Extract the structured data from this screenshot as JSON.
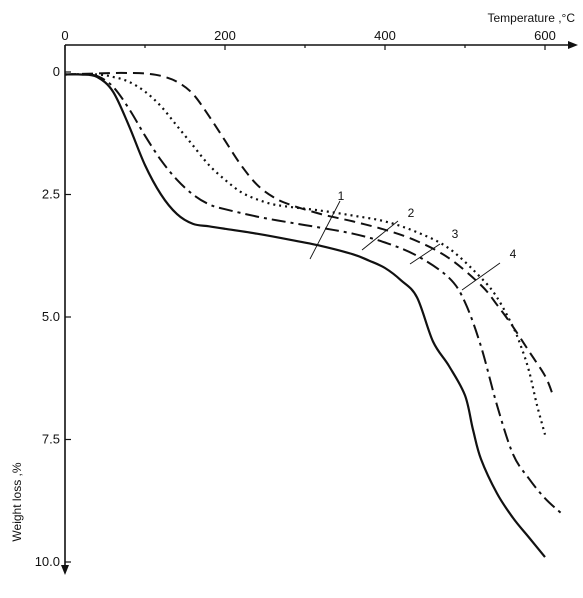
{
  "chart_data": {
    "type": "line",
    "xlabel": "Temperature ,°C",
    "ylabel": "Weight loss ,%",
    "xlim": [
      0,
      640
    ],
    "ylim": [
      0,
      10.6
    ],
    "y_inverted": true,
    "x_axis_position": "top",
    "x_ticks": [
      0,
      200,
      400,
      600
    ],
    "x_tick_labels": [
      "0",
      "200",
      "400",
      "600"
    ],
    "y_ticks": [
      0,
      2.5,
      5.0,
      7.5,
      10.0
    ],
    "y_tick_labels": [
      "0",
      "2.5",
      "5.0",
      "7.5",
      "10.0"
    ],
    "grid": false,
    "series": [
      {
        "name": "1",
        "line_style": "solid",
        "x": [
          0,
          20,
          40,
          60,
          80,
          100,
          120,
          140,
          160,
          180,
          200,
          240,
          280,
          320,
          360,
          380,
          400,
          420,
          440,
          460,
          480,
          500,
          510,
          520,
          540,
          560,
          580,
          600
        ],
        "y": [
          0.05,
          0.05,
          0.1,
          0.4,
          1.1,
          1.9,
          2.5,
          2.9,
          3.1,
          3.15,
          3.2,
          3.3,
          3.42,
          3.55,
          3.72,
          3.85,
          4.0,
          4.25,
          4.6,
          5.5,
          6.0,
          6.6,
          7.3,
          7.9,
          8.6,
          9.1,
          9.5,
          9.9
        ]
      },
      {
        "name": "2",
        "line_style": "dash-dot",
        "x": [
          0,
          20,
          40,
          60,
          80,
          100,
          120,
          140,
          160,
          180,
          200,
          240,
          280,
          320,
          360,
          400,
          440,
          480,
          500,
          520,
          540,
          560,
          580,
          600,
          620
        ],
        "y": [
          0.05,
          0.05,
          0.08,
          0.3,
          0.75,
          1.3,
          1.8,
          2.2,
          2.5,
          2.7,
          2.8,
          2.95,
          3.07,
          3.18,
          3.3,
          3.48,
          3.75,
          4.2,
          4.7,
          5.6,
          6.8,
          7.8,
          8.3,
          8.7,
          9.0
        ]
      },
      {
        "name": "3",
        "line_style": "dotted",
        "x": [
          0,
          40,
          60,
          80,
          100,
          120,
          140,
          160,
          180,
          200,
          220,
          240,
          260,
          280,
          320,
          360,
          400,
          440,
          480,
          520,
          540,
          560,
          570,
          580,
          590,
          600
        ],
        "y": [
          0.05,
          0.05,
          0.1,
          0.2,
          0.4,
          0.7,
          1.1,
          1.5,
          1.9,
          2.2,
          2.45,
          2.6,
          2.7,
          2.75,
          2.83,
          2.93,
          3.05,
          3.27,
          3.6,
          4.2,
          4.6,
          5.2,
          5.6,
          6.1,
          6.8,
          7.4
        ]
      },
      {
        "name": "4",
        "line_style": "dashed",
        "x": [
          0,
          40,
          60,
          80,
          100,
          120,
          140,
          160,
          180,
          200,
          220,
          240,
          260,
          280,
          320,
          360,
          400,
          440,
          480,
          520,
          540,
          560,
          580,
          600,
          610
        ],
        "y": [
          0.05,
          0.03,
          0.02,
          0.02,
          0.03,
          0.08,
          0.2,
          0.45,
          0.9,
          1.4,
          1.9,
          2.3,
          2.55,
          2.7,
          2.9,
          3.05,
          3.22,
          3.45,
          3.8,
          4.35,
          4.75,
          5.2,
          5.7,
          6.2,
          6.6
        ]
      }
    ],
    "annotations": [
      {
        "text": "1",
        "points_to_series": "1"
      },
      {
        "text": "2",
        "points_to_series": "2"
      },
      {
        "text": "3",
        "points_to_series": "3"
      },
      {
        "text": "4",
        "points_to_series": "4"
      }
    ]
  }
}
